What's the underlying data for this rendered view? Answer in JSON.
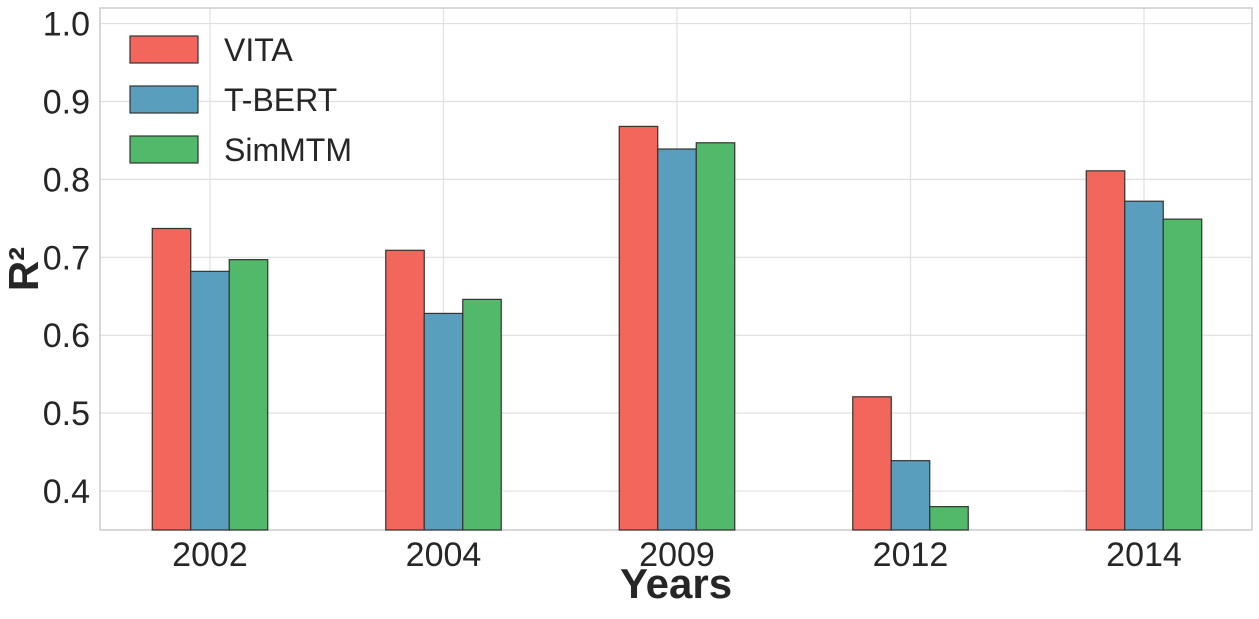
{
  "chart_data": {
    "type": "bar",
    "categories": [
      "2002",
      "2004",
      "2009",
      "2012",
      "2014"
    ],
    "series": [
      {
        "name": "VITA",
        "color": "#f2665c",
        "values": [
          0.737,
          0.709,
          0.868,
          0.521,
          0.811
        ]
      },
      {
        "name": "T-BERT",
        "color": "#5a9ebd",
        "values": [
          0.682,
          0.628,
          0.839,
          0.439,
          0.772
        ]
      },
      {
        "name": "SimMTM",
        "color": "#52b86a",
        "values": [
          0.697,
          0.646,
          0.847,
          0.38,
          0.749
        ]
      }
    ],
    "xlabel": "Years",
    "ylabel": "R²",
    "ylim": [
      0.35,
      1.02
    ],
    "yticks": [
      "0.4",
      "0.5",
      "0.6",
      "0.7",
      "0.8",
      "0.9",
      "1.0"
    ],
    "grid": true,
    "legend_position": "top-left"
  }
}
